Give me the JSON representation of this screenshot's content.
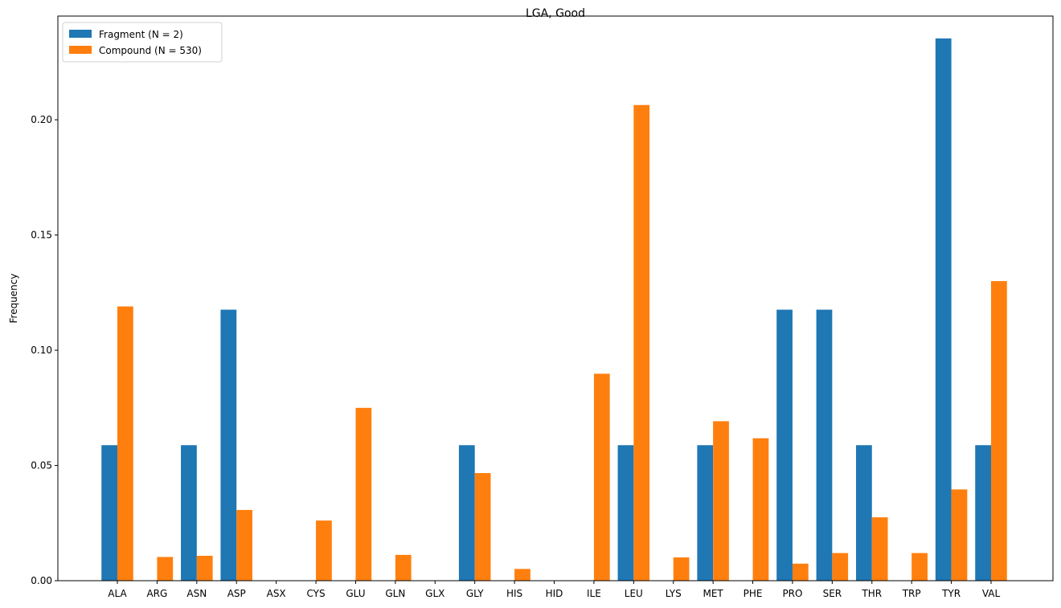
{
  "chart_data": {
    "type": "bar",
    "title": "LGA, Good",
    "xlabel": "",
    "ylabel": "Frequency",
    "ylim": [
      0,
      0.245
    ],
    "yticks": [
      0.0,
      0.05,
      0.1,
      0.15,
      0.2
    ],
    "ytick_labels": [
      "0.00",
      "0.05",
      "0.10",
      "0.15",
      "0.20"
    ],
    "categories": [
      "ALA",
      "ARG",
      "ASN",
      "ASP",
      "ASX",
      "CYS",
      "GLU",
      "GLN",
      "GLX",
      "GLY",
      "HIS",
      "HID",
      "ILE",
      "LEU",
      "LYS",
      "MET",
      "PHE",
      "PRO",
      "SER",
      "THR",
      "TRP",
      "TYR",
      "VAL"
    ],
    "series": [
      {
        "name": "Fragment (N = 2)",
        "color": "#1f77b4",
        "values": [
          0.0588,
          0,
          0.0588,
          0.1176,
          0,
          0,
          0,
          0,
          0,
          0.0588,
          0,
          0,
          0,
          0.0588,
          0,
          0.0588,
          0,
          0.1176,
          0.1176,
          0.0588,
          0,
          0.2353,
          0.0588
        ]
      },
      {
        "name": "Compound (N = 530)",
        "color": "#ff7f0e",
        "values": [
          0.119,
          0.0103,
          0.0108,
          0.0307,
          0,
          0.0261,
          0.075,
          0.0112,
          0,
          0.0467,
          0.0051,
          0,
          0.0898,
          0.2064,
          0.0101,
          0.0692,
          0.0618,
          0.0074,
          0.012,
          0.0275,
          0.012,
          0.0396,
          0.13
        ]
      }
    ],
    "legend": "top-left"
  }
}
